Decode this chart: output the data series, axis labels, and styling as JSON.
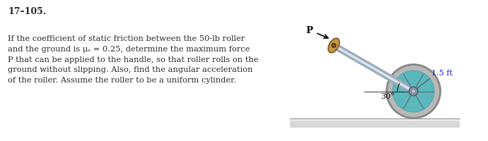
{
  "title": "17–105.",
  "line1": "If the coefficient of static friction between the 50-lb roller",
  "line2": "and the ground is μₛ = 0.25, determine the maximum force",
  "line3": "P that can be applied to the handle, so that roller rolls on the",
  "line4": "ground without slipping. Also, find the angular acceleration",
  "line5": "of the roller. Assume the roller to be a uniform cylinder.",
  "label_P": "P",
  "label_angle": "30°",
  "label_radius": "1.5 ft",
  "background_color": "#ffffff",
  "text_color": "#2a2a2a",
  "roller_teal": "#5ab8bc",
  "roller_rim": "#b8b8b8",
  "roller_rim_edge": "#888888",
  "handle_tan": "#c8954a",
  "rod_color": "#9aabb8",
  "rod_highlight": "#d8e4ee",
  "ground_top": "#cccccc",
  "ground_body": "#d8d8d8",
  "hub_color": "#8898a8",
  "spoke_color": "#607080"
}
